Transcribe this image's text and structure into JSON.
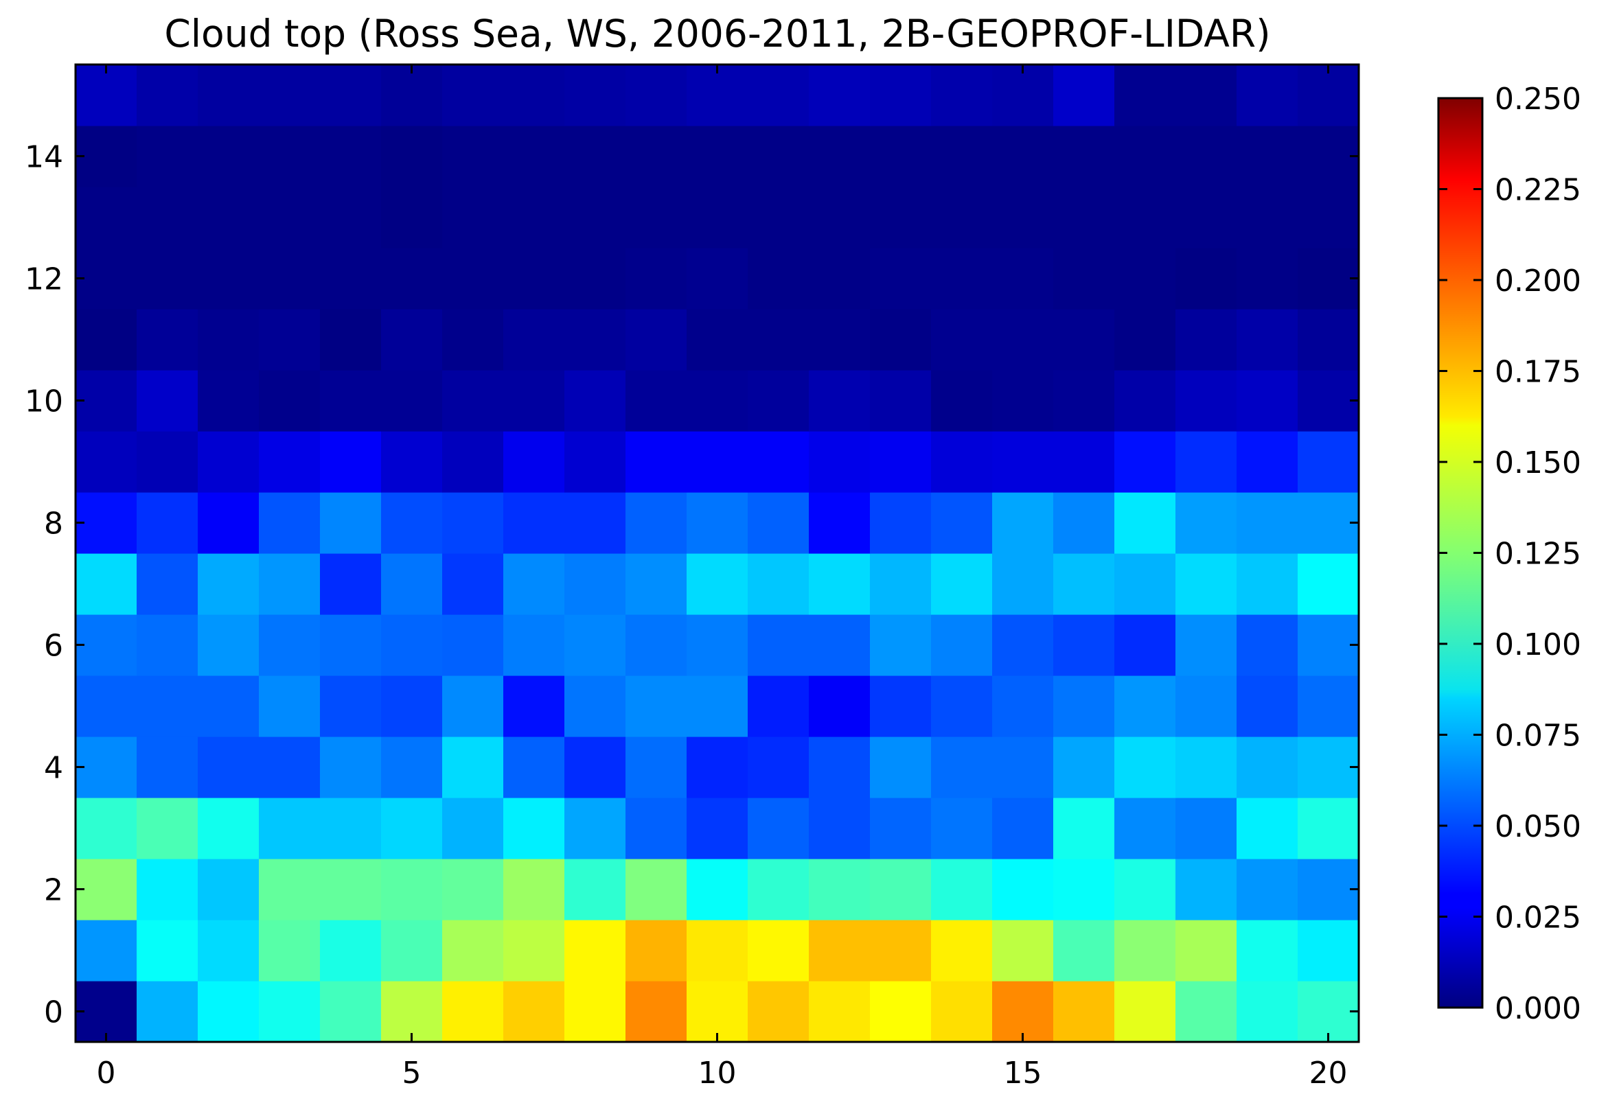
{
  "chart_data": {
    "type": "heatmap",
    "title": "Cloud top (Ross Sea, WS, 2006-2011, 2B-GEOPROF-LIDAR)",
    "xlabel": "",
    "ylabel": "",
    "xlim": [
      -0.5,
      20.5
    ],
    "ylim": [
      -0.5,
      15.5
    ],
    "x_ticks": [
      0,
      5,
      10,
      15,
      20
    ],
    "x_tick_labels": [
      "0",
      "5",
      "10",
      "15",
      "20"
    ],
    "y_ticks": [
      0,
      2,
      4,
      6,
      8,
      10,
      12,
      14
    ],
    "y_tick_labels": [
      "0",
      "2",
      "4",
      "6",
      "8",
      "10",
      "12",
      "14"
    ],
    "colormap": "jet",
    "colorbar": {
      "min": 0.0,
      "max": 0.25,
      "ticks": [
        0.0,
        0.025,
        0.05,
        0.075,
        0.1,
        0.125,
        0.15,
        0.175,
        0.2,
        0.225,
        0.25
      ],
      "tick_labels": [
        "0.000",
        "0.025",
        "0.050",
        "0.075",
        "0.100",
        "0.125",
        "0.150",
        "0.175",
        "0.200",
        "0.225",
        "0.250"
      ]
    },
    "grid": false,
    "row_y": [
      0,
      1,
      2,
      3,
      4,
      5,
      6,
      7,
      8,
      9,
      10,
      11,
      12,
      13,
      14,
      15
    ],
    "col_x": [
      0,
      1,
      2,
      3,
      4,
      5,
      6,
      7,
      8,
      9,
      10,
      11,
      12,
      13,
      14,
      15,
      16,
      17,
      18,
      19,
      20
    ],
    "values": [
      [
        0.003,
        0.075,
        0.092,
        0.098,
        0.11,
        0.14,
        0.16,
        0.168,
        0.158,
        0.185,
        0.16,
        0.17,
        0.162,
        0.156,
        0.164,
        0.185,
        0.172,
        0.15,
        0.115,
        0.1,
        0.105
      ],
      [
        0.068,
        0.095,
        0.085,
        0.115,
        0.1,
        0.112,
        0.135,
        0.14,
        0.158,
        0.175,
        0.162,
        0.158,
        0.172,
        0.172,
        0.16,
        0.14,
        0.112,
        0.128,
        0.135,
        0.098,
        0.09
      ],
      [
        0.128,
        0.09,
        0.08,
        0.118,
        0.118,
        0.116,
        0.118,
        0.132,
        0.105,
        0.125,
        0.095,
        0.105,
        0.11,
        0.112,
        0.102,
        0.093,
        0.095,
        0.1,
        0.075,
        0.068,
        0.065
      ],
      [
        0.105,
        0.112,
        0.098,
        0.08,
        0.08,
        0.084,
        0.075,
        0.09,
        0.072,
        0.055,
        0.045,
        0.055,
        0.05,
        0.056,
        0.06,
        0.055,
        0.098,
        0.065,
        0.062,
        0.09,
        0.1
      ],
      [
        0.065,
        0.055,
        0.05,
        0.05,
        0.065,
        0.06,
        0.085,
        0.055,
        0.042,
        0.058,
        0.04,
        0.042,
        0.05,
        0.066,
        0.058,
        0.058,
        0.072,
        0.085,
        0.082,
        0.075,
        0.078
      ],
      [
        0.055,
        0.055,
        0.055,
        0.065,
        0.05,
        0.048,
        0.065,
        0.035,
        0.06,
        0.065,
        0.065,
        0.038,
        0.03,
        0.045,
        0.05,
        0.055,
        0.06,
        0.068,
        0.064,
        0.05,
        0.058
      ],
      [
        0.06,
        0.058,
        0.068,
        0.06,
        0.058,
        0.056,
        0.055,
        0.062,
        0.064,
        0.06,
        0.062,
        0.055,
        0.055,
        0.068,
        0.063,
        0.052,
        0.048,
        0.042,
        0.066,
        0.052,
        0.063
      ],
      [
        0.085,
        0.052,
        0.073,
        0.068,
        0.042,
        0.06,
        0.045,
        0.065,
        0.062,
        0.066,
        0.085,
        0.08,
        0.085,
        0.076,
        0.085,
        0.072,
        0.078,
        0.075,
        0.085,
        0.08,
        0.093
      ],
      [
        0.035,
        0.043,
        0.03,
        0.052,
        0.064,
        0.05,
        0.048,
        0.043,
        0.043,
        0.055,
        0.06,
        0.055,
        0.032,
        0.048,
        0.052,
        0.072,
        0.064,
        0.088,
        0.07,
        0.068,
        0.068
      ],
      [
        0.015,
        0.013,
        0.02,
        0.025,
        0.03,
        0.02,
        0.015,
        0.027,
        0.02,
        0.03,
        0.03,
        0.03,
        0.026,
        0.028,
        0.022,
        0.023,
        0.023,
        0.035,
        0.042,
        0.036,
        0.045
      ],
      [
        0.01,
        0.018,
        0.005,
        0.003,
        0.005,
        0.005,
        0.008,
        0.008,
        0.013,
        0.006,
        0.006,
        0.007,
        0.012,
        0.01,
        0.003,
        0.004,
        0.005,
        0.01,
        0.015,
        0.017,
        0.01
      ],
      [
        0.001,
        0.006,
        0.004,
        0.005,
        0.001,
        0.006,
        0.003,
        0.006,
        0.006,
        0.008,
        0.003,
        0.003,
        0.003,
        0.002,
        0.004,
        0.004,
        0.004,
        0.002,
        0.007,
        0.01,
        0.006
      ],
      [
        0.002,
        0.002,
        0.002,
        0.002,
        0.002,
        0.002,
        0.002,
        0.002,
        0.002,
        0.003,
        0.004,
        0.002,
        0.002,
        0.003,
        0.003,
        0.003,
        0.002,
        0.002,
        0.001,
        0.002,
        0.001
      ],
      [
        0.002,
        0.002,
        0.002,
        0.002,
        0.002,
        0.001,
        0.002,
        0.002,
        0.002,
        0.002,
        0.002,
        0.002,
        0.002,
        0.002,
        0.002,
        0.002,
        0.002,
        0.002,
        0.002,
        0.002,
        0.002
      ],
      [
        0.001,
        0.002,
        0.002,
        0.002,
        0.002,
        0.001,
        0.002,
        0.002,
        0.002,
        0.002,
        0.002,
        0.002,
        0.002,
        0.002,
        0.002,
        0.002,
        0.002,
        0.002,
        0.002,
        0.002,
        0.002
      ],
      [
        0.015,
        0.01,
        0.008,
        0.008,
        0.008,
        0.006,
        0.008,
        0.008,
        0.009,
        0.01,
        0.012,
        0.012,
        0.014,
        0.013,
        0.011,
        0.01,
        0.018,
        0.004,
        0.004,
        0.01,
        0.008
      ]
    ]
  }
}
